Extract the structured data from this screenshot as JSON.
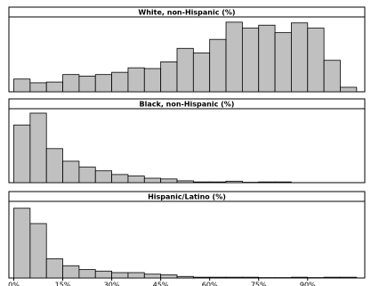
{
  "chart_data": [
    {
      "type": "histogram",
      "title": "White, non-Hispanic (%)",
      "color": "#c0c0c0",
      "bins": [
        0,
        5,
        10,
        15,
        20,
        25,
        30,
        35,
        40,
        45,
        50,
        55,
        60,
        65,
        70,
        75,
        80,
        85,
        90,
        95,
        100,
        105
      ],
      "values": [
        17,
        12,
        13,
        23,
        21,
        23,
        26,
        32,
        31,
        40,
        58,
        52,
        70,
        93,
        85,
        89,
        79,
        92,
        85,
        42,
        6
      ],
      "xlim": [
        -1.5,
        107.5
      ],
      "ylim": [
        0,
        100
      ]
    },
    {
      "type": "histogram",
      "title": "Black, non-Hispanic (%)",
      "color": "#c0c0c0",
      "bins": [
        0,
        5,
        10,
        15,
        20,
        25,
        30,
        35,
        40,
        45,
        50,
        55,
        60,
        65,
        70,
        75,
        80,
        85,
        90,
        95,
        100,
        105
      ],
      "values": [
        78,
        94,
        46,
        29,
        21,
        16,
        11,
        9,
        6,
        5,
        2.5,
        1,
        1,
        2,
        0.5,
        1,
        1,
        0,
        0,
        0,
        0
      ],
      "xlim": [
        -1.5,
        107.5
      ],
      "ylim": [
        0,
        100
      ]
    },
    {
      "type": "histogram",
      "title": "Hispanic/Latino  (%)",
      "color": "#c0c0c0",
      "bins": [
        0,
        5,
        10,
        15,
        20,
        25,
        30,
        35,
        40,
        45,
        50,
        55,
        60,
        65,
        70,
        75,
        80,
        85,
        90,
        95,
        100,
        105
      ],
      "values": [
        91,
        71,
        25,
        16,
        11,
        9,
        7,
        7,
        5,
        4,
        2,
        1,
        1,
        1,
        1,
        0.5,
        0.5,
        1,
        0.5,
        1,
        1
      ],
      "xlim": [
        -1.5,
        107.5
      ],
      "ylim": [
        0,
        100
      ],
      "xticks": [
        {
          "value": 0,
          "label": "0%"
        },
        {
          "value": 15,
          "label": "15%"
        },
        {
          "value": 30,
          "label": "30%"
        },
        {
          "value": 45,
          "label": "45%"
        },
        {
          "value": 60,
          "label": "60%"
        },
        {
          "value": 75,
          "label": "75%"
        },
        {
          "value": 90,
          "label": "90%"
        }
      ]
    }
  ]
}
